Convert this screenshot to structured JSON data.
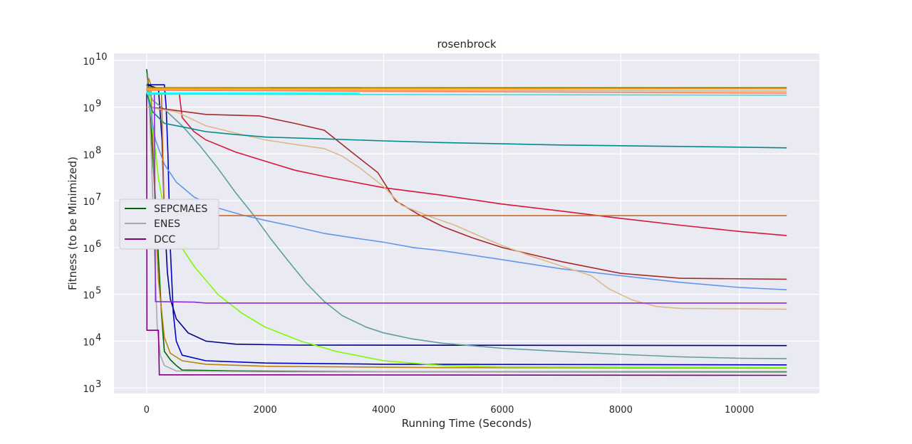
{
  "chart_data": {
    "type": "line",
    "title": "rosenbrock",
    "xlabel": "Running Time (Seconds)",
    "ylabel": "Fitness (to be Minimized)",
    "xlim": [
      -550,
      11350
    ],
    "ylog": true,
    "ylim_exp": [
      2.88,
      10.15
    ],
    "x_ticks": [
      0,
      2000,
      4000,
      6000,
      8000,
      10000
    ],
    "x_tick_labels": [
      "0",
      "2000",
      "4000",
      "6000",
      "8000",
      "10000"
    ],
    "y_ticks": [
      3,
      4,
      5,
      6,
      7,
      8,
      9,
      10
    ],
    "y_tick_label_base": "10",
    "y_tick_label_exps": [
      "3",
      "4",
      "5",
      "6",
      "7",
      "8",
      "9",
      "10"
    ],
    "grid": true,
    "legend_position": "center-left",
    "legend": [
      {
        "name": "SEPCMAES",
        "color": "#006400"
      },
      {
        "name": "ENES",
        "color": "#a9a9a9"
      },
      {
        "name": "DCC",
        "color": "#800080"
      }
    ],
    "series": [
      {
        "name": "SEPCMAES",
        "color": "#006400",
        "points": [
          [
            0,
            6500000000
          ],
          [
            30,
            3000000000
          ],
          [
            60,
            800000000
          ],
          [
            100,
            100000000
          ],
          [
            150,
            10000000
          ],
          [
            200,
            600000
          ],
          [
            250,
            40000
          ],
          [
            300,
            6000
          ],
          [
            400,
            4000
          ],
          [
            500,
            3000
          ],
          [
            600,
            2400
          ],
          [
            1500,
            2300
          ],
          [
            4000,
            2200
          ],
          [
            10800,
            2200
          ]
        ]
      },
      {
        "name": "ENES",
        "color": "#a9a9a9",
        "points": [
          [
            0,
            5000000000
          ],
          [
            40,
            1500000000
          ],
          [
            80,
            100000000
          ],
          [
            130,
            1000000
          ],
          [
            180,
            20000
          ],
          [
            230,
            5000
          ],
          [
            300,
            3000
          ],
          [
            500,
            2300
          ],
          [
            2000,
            2200
          ],
          [
            10800,
            2150
          ]
        ]
      },
      {
        "name": "DCC",
        "color": "#800080",
        "points": [
          [
            0,
            2000000000
          ],
          [
            5,
            17000
          ],
          [
            200,
            17000
          ],
          [
            215,
            1900
          ],
          [
            2000,
            1900
          ],
          [
            10800,
            1850
          ]
        ]
      },
      {
        "color": "#b8860b",
        "points": [
          [
            0,
            2800000000
          ],
          [
            40,
            4000000000
          ],
          [
            70,
            3000000000
          ],
          [
            100,
            300000000
          ],
          [
            150,
            5000000
          ],
          [
            200,
            200000
          ],
          [
            300,
            12000
          ],
          [
            400,
            5500
          ],
          [
            600,
            3800
          ],
          [
            1000,
            3200
          ],
          [
            2000,
            2900
          ],
          [
            5000,
            2700
          ],
          [
            10800,
            2650
          ]
        ]
      },
      {
        "color": "#0000cd",
        "points": [
          [
            0,
            3000000000
          ],
          [
            300,
            3000000000
          ],
          [
            330,
            1000000000
          ],
          [
            360,
            100000000
          ],
          [
            400,
            1000000
          ],
          [
            450,
            40000
          ],
          [
            500,
            10000
          ],
          [
            600,
            5000
          ],
          [
            1000,
            3800
          ],
          [
            2000,
            3400
          ],
          [
            4000,
            3200
          ],
          [
            10800,
            3100
          ]
        ]
      },
      {
        "color": "#00008b",
        "points": [
          [
            0,
            3000000000
          ],
          [
            200,
            2500000000
          ],
          [
            260,
            200000000
          ],
          [
            300,
            5000000
          ],
          [
            350,
            300000
          ],
          [
            400,
            80000
          ],
          [
            500,
            30000
          ],
          [
            700,
            15000
          ],
          [
            1000,
            10000
          ],
          [
            1500,
            8600
          ],
          [
            2500,
            8200
          ],
          [
            10800,
            8000
          ]
        ]
      },
      {
        "color": "#7cfc00",
        "points": [
          [
            0,
            3000000000
          ],
          [
            50,
            1500000000
          ],
          [
            100,
            400000000
          ],
          [
            200,
            30000000
          ],
          [
            300,
            6000000
          ],
          [
            500,
            1500000
          ],
          [
            800,
            400000
          ],
          [
            1200,
            100000
          ],
          [
            1600,
            40000
          ],
          [
            2000,
            20000
          ],
          [
            2600,
            10000
          ],
          [
            3200,
            6000
          ],
          [
            4000,
            3800
          ],
          [
            5000,
            3000
          ],
          [
            6000,
            2800
          ],
          [
            10800,
            2700
          ]
        ]
      },
      {
        "color": "#5f9ea0",
        "points": [
          [
            0,
            3000000000
          ],
          [
            100,
            1400000000
          ],
          [
            300,
            900000000
          ],
          [
            600,
            400000000
          ],
          [
            900,
            150000000
          ],
          [
            1200,
            50000000
          ],
          [
            1500,
            15000000
          ],
          [
            1800,
            5000000
          ],
          [
            2100,
            1500000
          ],
          [
            2400,
            500000
          ],
          [
            2700,
            170000
          ],
          [
            3000,
            70000
          ],
          [
            3300,
            35000
          ],
          [
            3700,
            20000
          ],
          [
            4000,
            15000
          ],
          [
            4500,
            11000
          ],
          [
            5000,
            9000
          ],
          [
            6000,
            7000
          ],
          [
            7000,
            6000
          ],
          [
            8000,
            5200
          ],
          [
            9000,
            4600
          ],
          [
            10000,
            4300
          ],
          [
            10800,
            4200
          ]
        ]
      },
      {
        "color": "#6495ed",
        "points": [
          [
            0,
            2500000000
          ],
          [
            50,
            1000000000
          ],
          [
            150,
            200000000
          ],
          [
            300,
            60000000
          ],
          [
            500,
            25000000
          ],
          [
            800,
            12000000
          ],
          [
            1200,
            7000000
          ],
          [
            1600,
            5000000
          ],
          [
            2000,
            3800000
          ],
          [
            2500,
            2800000
          ],
          [
            3000,
            2000000
          ],
          [
            3500,
            1600000
          ],
          [
            4000,
            1300000
          ],
          [
            4500,
            1000000
          ],
          [
            5000,
            850000
          ],
          [
            6000,
            550000
          ],
          [
            7000,
            350000
          ],
          [
            8000,
            250000
          ],
          [
            9000,
            180000
          ],
          [
            10000,
            140000
          ],
          [
            10800,
            125000
          ]
        ]
      },
      {
        "color": "#dc143c",
        "points": [
          [
            550,
            2000000000
          ],
          [
            600,
            600000000
          ],
          [
            800,
            300000000
          ],
          [
            1000,
            200000000
          ],
          [
            1500,
            110000000
          ],
          [
            2000,
            70000000
          ],
          [
            2500,
            45000000
          ],
          [
            3000,
            33000000
          ],
          [
            3500,
            25000000
          ],
          [
            4000,
            19000000
          ],
          [
            5000,
            13000000
          ],
          [
            6000,
            8500000
          ],
          [
            7000,
            6000000
          ],
          [
            8000,
            4200000
          ],
          [
            9000,
            3000000
          ],
          [
            10000,
            2200000
          ],
          [
            10800,
            1800000
          ]
        ]
      },
      {
        "color": "#a52a2a",
        "points": [
          [
            0,
            1000000000
          ],
          [
            200,
            950000000
          ],
          [
            1000,
            700000000
          ],
          [
            1900,
            650000000
          ],
          [
            2500,
            450000000
          ],
          [
            3000,
            320000000
          ],
          [
            3500,
            100000000
          ],
          [
            3900,
            40000000
          ],
          [
            4200,
            10000000
          ],
          [
            4600,
            5000000
          ],
          [
            5000,
            2800000
          ],
          [
            5500,
            1600000
          ],
          [
            6000,
            1000000
          ],
          [
            7000,
            500000
          ],
          [
            8000,
            280000
          ],
          [
            9000,
            220000
          ],
          [
            10800,
            210000
          ]
        ]
      },
      {
        "color": "#deb887",
        "points": [
          [
            0,
            1000000000
          ],
          [
            500,
            800000000
          ],
          [
            1000,
            400000000
          ],
          [
            1500,
            280000000
          ],
          [
            2000,
            200000000
          ],
          [
            2500,
            160000000
          ],
          [
            3000,
            130000000
          ],
          [
            3300,
            90000000
          ],
          [
            3600,
            50000000
          ],
          [
            4000,
            20000000
          ],
          [
            4300,
            8000000
          ],
          [
            4800,
            4500000
          ],
          [
            5200,
            3000000
          ],
          [
            5600,
            1800000
          ],
          [
            6000,
            1100000
          ],
          [
            6500,
            650000
          ],
          [
            7000,
            400000
          ],
          [
            7500,
            250000
          ],
          [
            7800,
            130000
          ],
          [
            8200,
            75000
          ],
          [
            8600,
            55000
          ],
          [
            9000,
            50000
          ],
          [
            10800,
            48000
          ]
        ]
      },
      {
        "color": "#008b8b",
        "points": [
          [
            0,
            2000000000
          ],
          [
            100,
            800000000
          ],
          [
            300,
            450000000
          ],
          [
            600,
            380000000
          ],
          [
            1000,
            300000000
          ],
          [
            1500,
            260000000
          ],
          [
            2000,
            230000000
          ],
          [
            3000,
            210000000
          ],
          [
            4000,
            190000000
          ],
          [
            5000,
            175000000
          ],
          [
            6000,
            165000000
          ],
          [
            7000,
            155000000
          ],
          [
            8000,
            150000000
          ],
          [
            9000,
            145000000
          ],
          [
            10000,
            140000000
          ],
          [
            10800,
            135000000
          ]
        ]
      },
      {
        "color": "#d2691e",
        "points": [
          [
            0,
            2000000000
          ],
          [
            250,
            2000000000
          ],
          [
            300,
            4800000
          ],
          [
            10800,
            4800000
          ]
        ]
      },
      {
        "color": "#8a2be2",
        "points": [
          [
            0,
            2000000000
          ],
          [
            130,
            2000000000
          ],
          [
            150,
            70000
          ],
          [
            800,
            68000
          ],
          [
            1000,
            65000
          ],
          [
            10800,
            65000
          ]
        ]
      },
      {
        "color": "#00ffff",
        "points": [
          [
            0,
            2000000000
          ],
          [
            3600,
            2000000000
          ]
        ]
      },
      {
        "color": "#40e0d0",
        "points": [
          [
            0,
            1900000000
          ],
          [
            10800,
            1800000000
          ]
        ]
      },
      {
        "color": "#ff7f50",
        "points": [
          [
            0,
            2300000000
          ],
          [
            10800,
            2000000000
          ]
        ]
      },
      {
        "color": "#f4a460",
        "points": [
          [
            0,
            2400000000
          ],
          [
            10800,
            2200000000
          ]
        ]
      },
      {
        "color": "#808000",
        "points": [
          [
            0,
            2600000000
          ],
          [
            10800,
            2600000000
          ]
        ]
      },
      {
        "color": "#ffa500",
        "points": [
          [
            0,
            2500000000
          ],
          [
            10800,
            2450000000
          ]
        ]
      }
    ]
  }
}
